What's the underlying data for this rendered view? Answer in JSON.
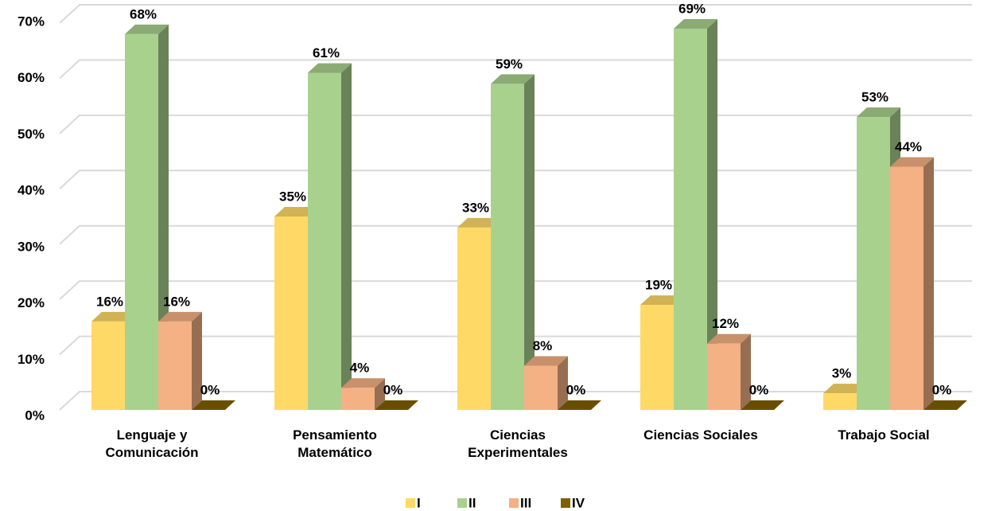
{
  "chart_data": {
    "type": "bar3d",
    "categories": [
      "Lenguaje y Comunicación",
      "Pensamiento Matemático",
      "Ciencias Experimentales",
      "Ciencias Sociales",
      "Trabajo Social"
    ],
    "series": [
      {
        "name": "I",
        "color": "#ffd966",
        "values": [
          16,
          35,
          33,
          19,
          3
        ],
        "value_labels": [
          "16%",
          "35%",
          "33%",
          "19%",
          "3%"
        ]
      },
      {
        "name": "II",
        "color": "#a9d18e",
        "values": [
          68,
          61,
          59,
          69,
          53
        ],
        "value_labels": [
          "68%",
          "61%",
          "59%",
          "69%",
          "53%"
        ]
      },
      {
        "name": "III",
        "color": "#f4b183",
        "values": [
          16,
          4,
          8,
          12,
          44
        ],
        "value_labels": [
          "16%",
          "4%",
          "8%",
          "12%",
          "44%"
        ]
      },
      {
        "name": "IV",
        "color": "#7f6000",
        "values": [
          0,
          0,
          0,
          0,
          0
        ],
        "value_labels": [
          "0%",
          "0%",
          "0%",
          "0%",
          "0%"
        ]
      }
    ],
    "ylim": [
      0,
      70
    ],
    "yticks": [
      {
        "value": 0,
        "label": "0%"
      },
      {
        "value": 10,
        "label": "10%"
      },
      {
        "value": 20,
        "label": "20%"
      },
      {
        "value": 30,
        "label": "30%"
      },
      {
        "value": 40,
        "label": "40%"
      },
      {
        "value": 50,
        "label": "50%"
      },
      {
        "value": 60,
        "label": "60%"
      },
      {
        "value": 70,
        "label": "70%"
      }
    ],
    "grid": true,
    "legend": "bottom"
  }
}
